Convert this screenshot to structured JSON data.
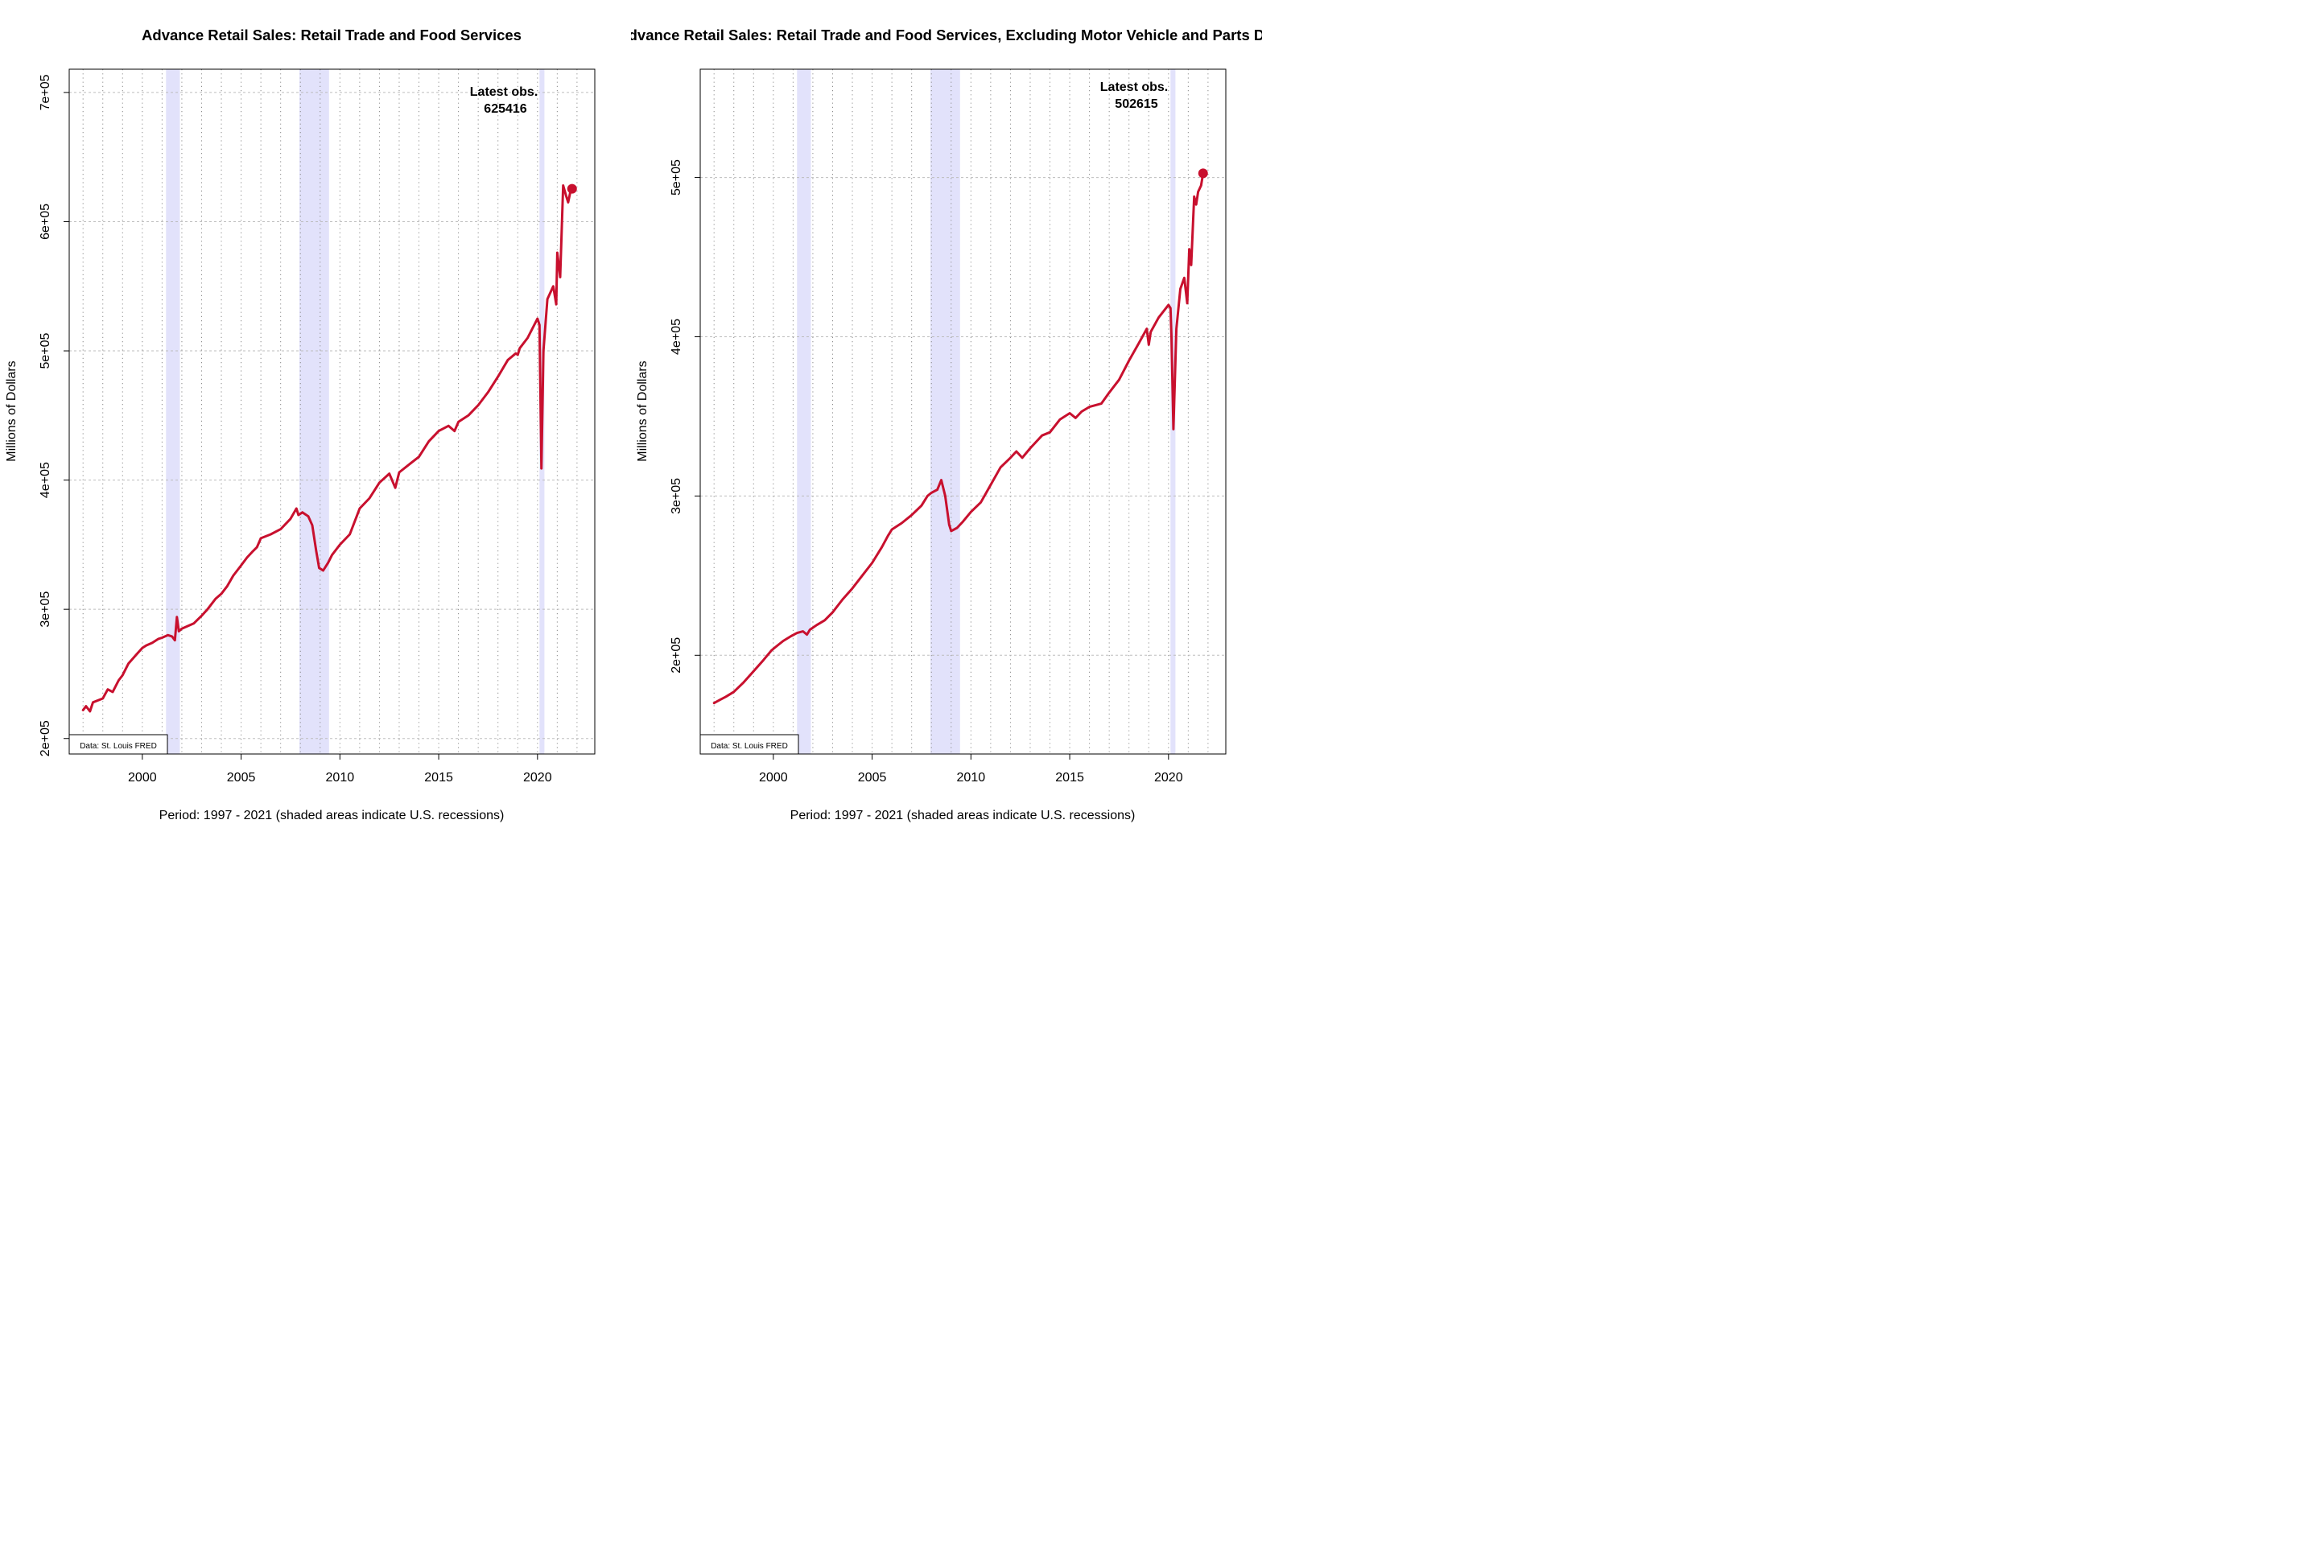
{
  "chart_data": [
    {
      "type": "line",
      "title": "Advance Retail Sales: Retail Trade and Food Services",
      "xlabel": "Period: 1997 - 2021 (shaded areas indicate U.S. recessions)",
      "ylabel": "Millions of Dollars",
      "source_label": "Data: St. Louis FRED",
      "latest_label": "Latest obs.",
      "latest_value": "625416",
      "xlim": [
        1996.3,
        2022.9
      ],
      "ylim": [
        188000,
        718000
      ],
      "x_ticks": [
        2000,
        2005,
        2010,
        2015,
        2020
      ],
      "x_tick_labels": [
        "2000",
        "2005",
        "2010",
        "2015",
        "2020"
      ],
      "y_ticks": [
        200000,
        300000,
        400000,
        500000,
        600000,
        700000
      ],
      "y_tick_labels": [
        "2e+05",
        "3e+05",
        "4e+05",
        "5e+05",
        "6e+05",
        "7e+05"
      ],
      "recessions": [
        [
          2001.2,
          2001.9
        ],
        [
          2007.95,
          2009.45
        ],
        [
          2020.1,
          2020.35
        ]
      ],
      "grid": true,
      "line_color": "#c8102e",
      "recession_color": "#e2e2fb",
      "series": [
        {
          "x": [
            1997.0,
            1997.15,
            1997.35,
            1997.5,
            1998.0,
            1998.25,
            1998.5,
            1998.8,
            1999.0,
            1999.3,
            1999.7,
            2000.0,
            2000.2,
            2000.5,
            2000.8,
            2001.0,
            2001.3,
            2001.5,
            2001.65,
            2001.75,
            2001.85,
            2002.0,
            2002.3,
            2002.6,
            2003.0,
            2003.3,
            2003.7,
            2004.0,
            2004.3,
            2004.6,
            2005.0,
            2005.3,
            2005.6,
            2005.8,
            2006.0,
            2006.5,
            2007.0,
            2007.5,
            2007.8,
            2007.9,
            2008.1,
            2008.4,
            2008.6,
            2008.8,
            2008.95,
            2009.15,
            2009.4,
            2009.6,
            2010.0,
            2010.5,
            2011.0,
            2011.5,
            2012.0,
            2012.5,
            2012.8,
            2013.0,
            2013.5,
            2014.0,
            2014.5,
            2015.0,
            2015.5,
            2015.8,
            2016.0,
            2016.5,
            2017.0,
            2017.5,
            2018.0,
            2018.5,
            2018.9,
            2019.0,
            2019.1,
            2019.5,
            2020.0,
            2020.1,
            2020.2,
            2020.3,
            2020.5,
            2020.8,
            2020.95,
            2021.0,
            2021.15,
            2021.3,
            2021.45,
            2021.55,
            2021.65,
            2021.75
          ],
          "y": [
            222000,
            225000,
            221000,
            228000,
            231000,
            238000,
            236000,
            245000,
            249000,
            258000,
            265000,
            270000,
            272000,
            274000,
            277000,
            278000,
            280000,
            279000,
            276000,
            294000,
            283000,
            285000,
            287000,
            289000,
            295000,
            300000,
            308000,
            312000,
            318000,
            326000,
            334000,
            340000,
            345000,
            348000,
            355000,
            358000,
            362000,
            370000,
            378000,
            373000,
            375000,
            372000,
            365000,
            345000,
            332000,
            330000,
            336000,
            342000,
            350000,
            358000,
            378000,
            386000,
            398000,
            405000,
            394000,
            406000,
            412000,
            418000,
            430000,
            438000,
            442000,
            438000,
            445000,
            450000,
            458000,
            468000,
            480000,
            493000,
            498000,
            497000,
            502000,
            510000,
            525000,
            520000,
            409000,
            500000,
            540000,
            550000,
            536000,
            576000,
            557000,
            628000,
            620000,
            615000,
            622000,
            625416
          ]
        }
      ]
    },
    {
      "type": "line",
      "title": "Advance Retail Sales: Retail Trade and Food Services, Excluding Motor Vehicle and Parts Dealers",
      "xlabel": "Period: 1997 - 2021 (shaded areas indicate U.S. recessions)",
      "ylabel": "Millions of Dollars",
      "source_label": "Data: St. Louis FRED",
      "latest_label": "Latest obs.",
      "latest_value": "502615",
      "xlim": [
        1996.3,
        2022.9
      ],
      "ylim": [
        138000,
        568000
      ],
      "x_ticks": [
        2000,
        2005,
        2010,
        2015,
        2020
      ],
      "x_tick_labels": [
        "2000",
        "2005",
        "2010",
        "2015",
        "2020"
      ],
      "y_ticks": [
        200000,
        300000,
        400000,
        500000
      ],
      "y_tick_labels": [
        "2e+05",
        "3e+05",
        "4e+05",
        "5e+05"
      ],
      "recessions": [
        [
          2001.2,
          2001.9
        ],
        [
          2007.95,
          2009.45
        ],
        [
          2020.1,
          2020.35
        ]
      ],
      "grid": true,
      "line_color": "#c8102e",
      "recession_color": "#e2e2fb",
      "series": [
        {
          "x": [
            1997.0,
            1997.3,
            1997.6,
            1998.0,
            1998.5,
            1999.0,
            1999.5,
            1999.9,
            2000.0,
            2000.2,
            2000.5,
            2000.9,
            2001.2,
            2001.5,
            2001.7,
            2001.85,
            2002.2,
            2002.6,
            2003.0,
            2003.5,
            2004.0,
            2004.5,
            2005.0,
            2005.5,
            2005.8,
            2006.0,
            2006.5,
            2007.0,
            2007.5,
            2007.8,
            2008.0,
            2008.3,
            2008.5,
            2008.7,
            2008.9,
            2009.0,
            2009.3,
            2009.6,
            2010.0,
            2010.5,
            2011.0,
            2011.5,
            2012.0,
            2012.3,
            2012.6,
            2013.0,
            2013.3,
            2013.6,
            2014.0,
            2014.5,
            2015.0,
            2015.3,
            2015.6,
            2016.0,
            2016.3,
            2016.6,
            2017.0,
            2017.5,
            2018.0,
            2018.5,
            2018.9,
            2019.0,
            2019.1,
            2019.5,
            2020.0,
            2020.1,
            2020.15,
            2020.25,
            2020.4,
            2020.6,
            2020.8,
            2020.95,
            2021.05,
            2021.15,
            2021.3,
            2021.4,
            2021.5,
            2021.65,
            2021.75
          ],
          "y": [
            170000,
            172000,
            174000,
            177000,
            183000,
            190000,
            197000,
            203000,
            204000,
            206000,
            209000,
            212000,
            214000,
            215000,
            213000,
            216000,
            219000,
            222000,
            227000,
            235000,
            242000,
            250000,
            258000,
            268000,
            275000,
            279000,
            283000,
            288000,
            294000,
            300000,
            302000,
            304000,
            310000,
            300000,
            282000,
            278000,
            280000,
            284000,
            290000,
            296000,
            307000,
            318000,
            324000,
            328000,
            324000,
            330000,
            334000,
            338000,
            340000,
            348000,
            352000,
            349000,
            353000,
            356000,
            357000,
            358000,
            365000,
            373000,
            385000,
            396000,
            405000,
            395000,
            403000,
            412000,
            420000,
            418000,
            400000,
            342000,
            405000,
            430000,
            437000,
            421000,
            455000,
            445000,
            488000,
            483000,
            491000,
            495000,
            502615
          ]
        }
      ]
    }
  ]
}
